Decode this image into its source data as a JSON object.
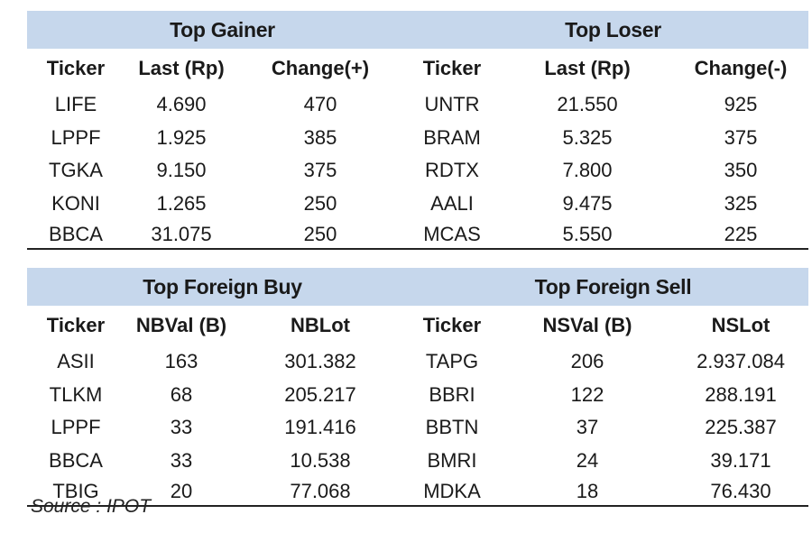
{
  "top_table": {
    "left_title": "Top Gainer",
    "right_title": "Top Loser",
    "columns": [
      "Ticker",
      "Last (Rp)",
      "Change(+)",
      "Ticker",
      "Last (Rp)",
      "Change(-)"
    ],
    "rows": [
      [
        "LIFE",
        "4.690",
        "470",
        "UNTR",
        "21.550",
        "925"
      ],
      [
        "LPPF",
        "1.925",
        "385",
        "BRAM",
        "5.325",
        "375"
      ],
      [
        "TGKA",
        "9.150",
        "375",
        "RDTX",
        "7.800",
        "350"
      ],
      [
        "KONI",
        "1.265",
        "250",
        "AALI",
        "9.475",
        "325"
      ],
      [
        "BBCA",
        "31.075",
        "250",
        "MCAS",
        "5.550",
        "225"
      ]
    ]
  },
  "foreign_table": {
    "left_title": "Top Foreign Buy",
    "right_title": "Top Foreign Sell",
    "columns": [
      "Ticker",
      "NBVal (B)",
      "NBLot",
      "Ticker",
      "NSVal (B)",
      "NSLot"
    ],
    "rows": [
      [
        "ASII",
        "163",
        "301.382",
        "TAPG",
        "206",
        "2.937.084"
      ],
      [
        "TLKM",
        "68",
        "205.217",
        "BBRI",
        "122",
        "288.191"
      ],
      [
        "LPPF",
        "33",
        "191.416",
        "BBTN",
        "37",
        "225.387"
      ],
      [
        "BBCA",
        "33",
        "10.538",
        "BMRI",
        "24",
        "39.171"
      ],
      [
        "TBIG",
        "20",
        "77.068",
        "MDKA",
        "18",
        "76.430"
      ]
    ]
  },
  "source": "Source : IPOT"
}
